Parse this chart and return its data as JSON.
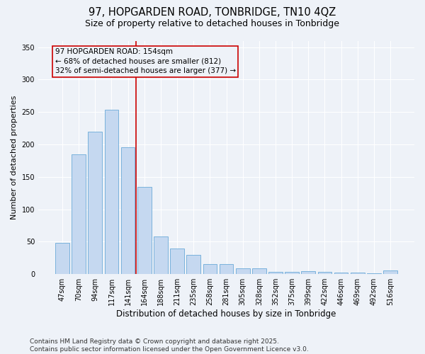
{
  "title": "97, HOPGARDEN ROAD, TONBRIDGE, TN10 4QZ",
  "subtitle": "Size of property relative to detached houses in Tonbridge",
  "xlabel": "Distribution of detached houses by size in Tonbridge",
  "ylabel": "Number of detached properties",
  "categories": [
    "47sqm",
    "70sqm",
    "94sqm",
    "117sqm",
    "141sqm",
    "164sqm",
    "188sqm",
    "211sqm",
    "235sqm",
    "258sqm",
    "281sqm",
    "305sqm",
    "328sqm",
    "352sqm",
    "375sqm",
    "399sqm",
    "422sqm",
    "446sqm",
    "469sqm",
    "492sqm",
    "516sqm"
  ],
  "values": [
    48,
    185,
    220,
    253,
    196,
    135,
    58,
    40,
    30,
    16,
    16,
    9,
    9,
    4,
    4,
    5,
    4,
    2,
    2,
    1,
    6
  ],
  "bar_color": "#c5d8f0",
  "bar_edgecolor": "#6baad8",
  "vline_x": 4.5,
  "vline_color": "#cc0000",
  "annotation_line1": "97 HOPGARDEN ROAD: 154sqm",
  "annotation_line2": "← 68% of detached houses are smaller (812)",
  "annotation_line3": "32% of semi-detached houses are larger (377) →",
  "annotation_box_color": "#cc0000",
  "annotation_fontsize": 7.5,
  "ylim": [
    0,
    360
  ],
  "yticks": [
    0,
    50,
    100,
    150,
    200,
    250,
    300,
    350
  ],
  "bg_color": "#eef2f8",
  "grid_color": "#ffffff",
  "footer_text": "Contains HM Land Registry data © Crown copyright and database right 2025.\nContains public sector information licensed under the Open Government Licence v3.0.",
  "title_fontsize": 10.5,
  "subtitle_fontsize": 9,
  "xlabel_fontsize": 8.5,
  "ylabel_fontsize": 8,
  "tick_fontsize": 7,
  "footer_fontsize": 6.5
}
